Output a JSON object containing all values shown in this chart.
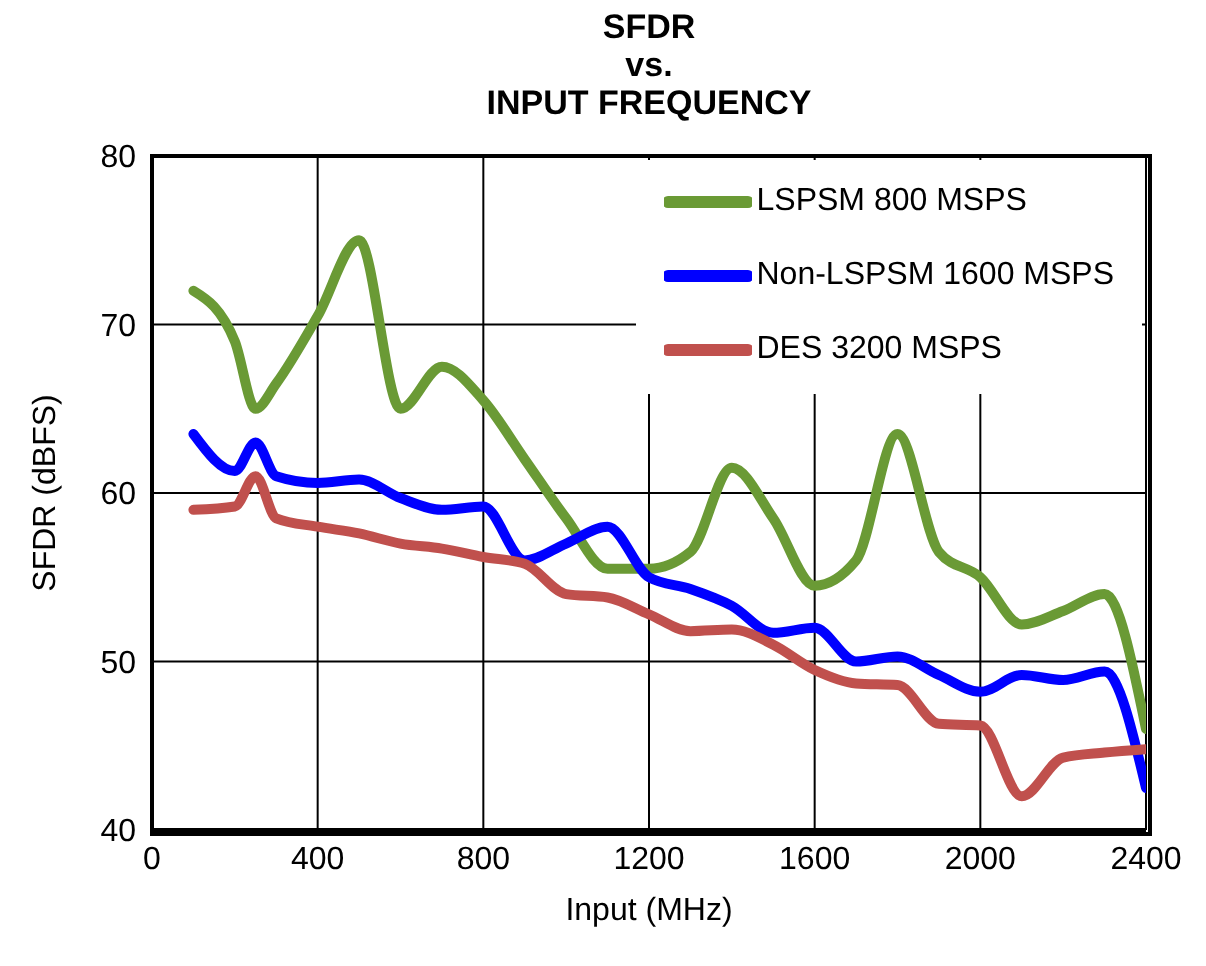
{
  "chart_data": {
    "type": "line",
    "title": "SFDR\nvs.\nINPUT FREQUENCY",
    "xlabel": "Input (MHz)",
    "ylabel": "SFDR (dBFS)",
    "x": [
      100,
      200,
      250,
      300,
      400,
      500,
      600,
      700,
      800,
      900,
      1000,
      1100,
      1200,
      1300,
      1400,
      1500,
      1600,
      1700,
      1800,
      1900,
      2000,
      2100,
      2200,
      2300,
      2400
    ],
    "series": [
      {
        "name": "LSPSM 800 MSPS",
        "color": "#6a9a35",
        "values": [
          72,
          69,
          65,
          66.5,
          70.5,
          75,
          65,
          67.5,
          65.5,
          62,
          58.5,
          55.5,
          55.5,
          56.5,
          61.5,
          58.5,
          54.5,
          56,
          63.5,
          56.5,
          55,
          52.2,
          53,
          54,
          46
        ]
      },
      {
        "name": "Non-LSPSM 1600 MSPS",
        "color": "#0000ff",
        "values": [
          63.5,
          61.3,
          63,
          61,
          60.6,
          60.8,
          59.7,
          59,
          59.2,
          56,
          57,
          58,
          55,
          54.3,
          53.3,
          51.7,
          52,
          50,
          50.3,
          49.2,
          48.2,
          49.2,
          48.9,
          49.4,
          42.5
        ]
      },
      {
        "name": "DES 3200 MSPS",
        "color": "#c0504d",
        "values": [
          59,
          59.2,
          61,
          58.5,
          58,
          57.6,
          57,
          56.7,
          56.2,
          55.8,
          54,
          53.8,
          52.8,
          51.8,
          51.9,
          51,
          49.5,
          48.7,
          48.6,
          46.3,
          46.2,
          42,
          44.3,
          44.6,
          44.8
        ]
      }
    ],
    "xlim": [
      0,
      2400
    ],
    "xticks": [
      0,
      400,
      800,
      1200,
      1600,
      2000,
      2400
    ],
    "ylim": [
      40,
      80
    ],
    "yticks": [
      40,
      50,
      60,
      70,
      80
    ],
    "grid": true,
    "legend": "top right",
    "marker": "none",
    "line_style": "solid"
  }
}
